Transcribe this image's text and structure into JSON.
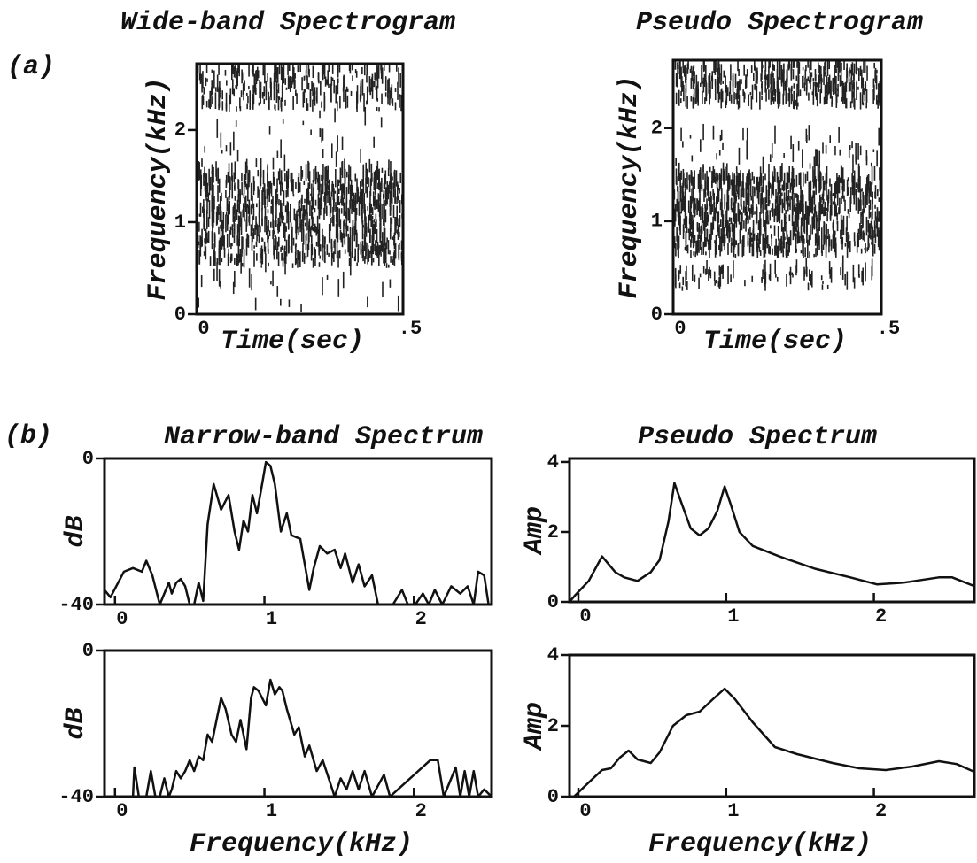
{
  "panel_labels": [
    "(a)",
    "(b)"
  ],
  "chart_data": [
    {
      "type": "spectrogram",
      "title": "Wide-band Spectrogram",
      "xlabel": "Time(sec)",
      "ylabel": "Frequency(kHz)",
      "xlim": [
        0,
        0.5
      ],
      "xticks": [
        0,
        {
          "value": 0.5,
          "label": ".5"
        }
      ],
      "ylim": [
        0,
        2.72
      ],
      "yticks": [
        0,
        1,
        2
      ]
    },
    {
      "type": "spectrogram",
      "title": "Pseudo Spectrogram",
      "xlabel": "Time(sec)",
      "ylabel": "Frequency(kHz)",
      "xlim": [
        0,
        0.5
      ],
      "xticks": [
        0,
        {
          "value": 0.5,
          "label": ".5"
        }
      ],
      "ylim": [
        0,
        2.73
      ],
      "yticks": [
        0,
        1,
        2
      ]
    },
    {
      "type": "line",
      "title": "Narrow-band Spectrum",
      "ylabel": "dB",
      "xlim": [
        -0.07,
        2.52
      ],
      "xticks": [
        0,
        1,
        2
      ],
      "ylim": [
        -40,
        0
      ],
      "yticks": [
        -40,
        0
      ],
      "color": "#111111",
      "x": [
        -0.07,
        -0.03,
        0.06,
        0.12,
        0.18,
        0.21,
        0.25,
        0.3,
        0.33,
        0.36,
        0.38,
        0.41,
        0.44,
        0.47,
        0.5,
        0.53,
        0.56,
        0.59,
        0.62,
        0.66,
        0.71,
        0.76,
        0.8,
        0.83,
        0.86,
        0.89,
        0.92,
        0.95,
        0.98,
        1.01,
        1.04,
        1.07,
        1.11,
        1.15,
        1.18,
        1.24,
        1.3,
        1.33,
        1.37,
        1.42,
        1.47,
        1.51,
        1.54,
        1.59,
        1.63,
        1.67,
        1.72,
        1.76,
        1.86,
        1.92,
        1.96,
        2.01,
        2.06,
        2.1,
        2.14,
        2.19,
        2.25,
        2.31,
        2.36,
        2.4,
        2.43,
        2.47,
        2.5
      ],
      "values": [
        -36,
        -38,
        -31,
        -30,
        -31,
        -28,
        -32,
        -40,
        -37,
        -34,
        -37,
        -34,
        -33,
        -35,
        -40,
        -40,
        -34,
        -39,
        -18,
        -7,
        -14,
        -10,
        -20,
        -25,
        -17,
        -20,
        -10,
        -15,
        -8,
        -1,
        -2,
        -7,
        -20,
        -15,
        -21,
        -22,
        -36,
        -30,
        -24,
        -26,
        -25,
        -30,
        -26,
        -34,
        -29,
        -35,
        -32,
        -40,
        -40,
        -36,
        -40,
        -40,
        -37,
        -40,
        -36,
        -40,
        -35,
        -37,
        -35,
        -40,
        -31,
        -32,
        -40
      ]
    },
    {
      "type": "line",
      "title": "Pseudo Spectrum",
      "ylabel": "Amp",
      "xlim": [
        -0.06,
        2.68
      ],
      "xticks": [
        0,
        1,
        2
      ],
      "ylim": [
        0,
        4.1
      ],
      "yticks": [
        0,
        2,
        4
      ],
      "color": "#111111",
      "x": [
        -0.06,
        -0.02,
        0.07,
        0.16,
        0.25,
        0.31,
        0.4,
        0.49,
        0.55,
        0.61,
        0.65,
        0.7,
        0.76,
        0.82,
        0.88,
        0.94,
        0.99,
        1.03,
        1.09,
        1.18,
        1.36,
        1.6,
        1.84,
        2.02,
        2.2,
        2.44,
        2.53,
        2.68
      ],
      "values": [
        0,
        0.2,
        0.6,
        1.3,
        0.85,
        0.7,
        0.6,
        0.85,
        1.2,
        2.3,
        3.4,
        2.8,
        2.1,
        1.9,
        2.1,
        2.6,
        3.3,
        2.8,
        2.0,
        1.6,
        1.3,
        0.95,
        0.7,
        0.5,
        0.55,
        0.7,
        0.7,
        0.45
      ]
    },
    {
      "type": "line",
      "xlabel": "Frequency(kHz)",
      "ylabel": "dB",
      "xlim": [
        -0.07,
        2.52
      ],
      "xticks": [
        0,
        1,
        2
      ],
      "ylim": [
        -40,
        0
      ],
      "yticks": [
        -40,
        0
      ],
      "color": "#111111",
      "x": [
        -0.07,
        0.12,
        0.13,
        0.16,
        0.21,
        0.24,
        0.27,
        0.3,
        0.33,
        0.36,
        0.38,
        0.41,
        0.44,
        0.47,
        0.5,
        0.53,
        0.56,
        0.59,
        0.62,
        0.65,
        0.68,
        0.71,
        0.74,
        0.78,
        0.81,
        0.84,
        0.88,
        0.91,
        0.93,
        0.96,
        1.01,
        1.04,
        1.07,
        1.1,
        1.12,
        1.15,
        1.2,
        1.23,
        1.27,
        1.3,
        1.35,
        1.39,
        1.43,
        1.47,
        1.51,
        1.55,
        1.59,
        1.63,
        1.67,
        1.72,
        1.8,
        1.84,
        2.11,
        2.16,
        2.2,
        2.28,
        2.31,
        2.34,
        2.37,
        2.4,
        2.43,
        2.47,
        2.52
      ],
      "values": [
        -40,
        -40,
        -32,
        -40,
        -40,
        -33,
        -40,
        -40,
        -35,
        -40,
        -38,
        -33,
        -35,
        -33,
        -30,
        -33,
        -29,
        -30,
        -23,
        -25,
        -19,
        -13,
        -16,
        -23,
        -25,
        -19,
        -27,
        -13,
        -10,
        -11,
        -15,
        -8,
        -12,
        -10,
        -11,
        -16,
        -23,
        -21,
        -29,
        -26,
        -33,
        -30,
        -35,
        -40,
        -35,
        -38,
        -33,
        -38,
        -33,
        -40,
        -34,
        -40,
        -30,
        -30,
        -40,
        -32,
        -40,
        -33,
        -40,
        -33,
        -40,
        -38,
        -40
      ]
    },
    {
      "type": "line",
      "xlabel": "Frequency(kHz)",
      "ylabel": "Amp",
      "xlim": [
        -0.06,
        2.68
      ],
      "xticks": [
        0,
        1,
        2
      ],
      "ylim": [
        0,
        4
      ],
      "yticks": [
        0,
        2,
        4
      ],
      "color": "#111111",
      "x": [
        -0.03,
        0.07,
        0.16,
        0.22,
        0.28,
        0.34,
        0.4,
        0.49,
        0.55,
        0.64,
        0.73,
        0.82,
        0.91,
        0.99,
        1.06,
        1.18,
        1.33,
        1.48,
        1.72,
        1.9,
        2.08,
        2.26,
        2.44,
        2.56,
        2.68
      ],
      "values": [
        0,
        0.4,
        0.75,
        0.8,
        1.1,
        1.3,
        1.05,
        0.95,
        1.25,
        2.0,
        2.3,
        2.4,
        2.75,
        3.05,
        2.75,
        2.1,
        1.4,
        1.2,
        0.95,
        0.8,
        0.75,
        0.85,
        1.0,
        0.92,
        0.7
      ]
    }
  ]
}
